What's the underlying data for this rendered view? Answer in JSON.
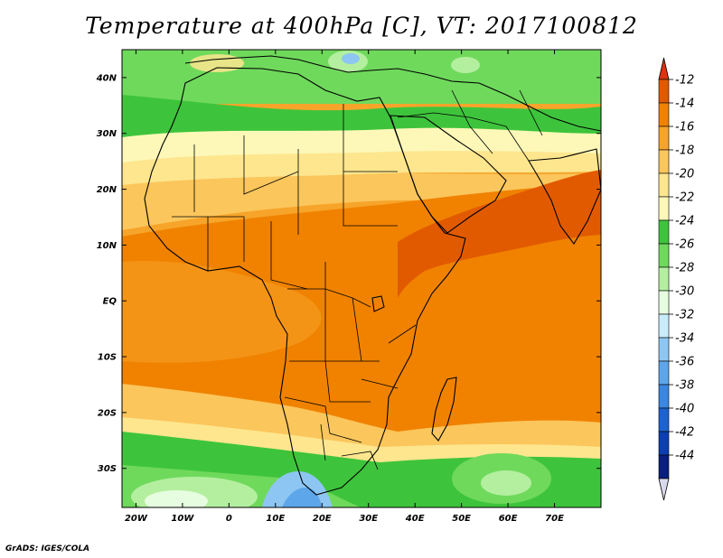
{
  "map": {
    "title": "Temperature at 400hPa [C], VT: 2017100812",
    "variable_unit": "C",
    "lon_range": [
      -23,
      80
    ],
    "lat_range": [
      -37,
      45
    ],
    "lat_ticks": [
      {
        "value": 40,
        "label": "40N"
      },
      {
        "value": 30,
        "label": "30N"
      },
      {
        "value": 20,
        "label": "20N"
      },
      {
        "value": 10,
        "label": "10N"
      },
      {
        "value": 0,
        "label": "EQ"
      },
      {
        "value": -10,
        "label": "10S"
      },
      {
        "value": -20,
        "label": "20S"
      },
      {
        "value": -30,
        "label": "30S"
      }
    ],
    "lon_ticks": [
      {
        "value": -20,
        "label": "20W"
      },
      {
        "value": -10,
        "label": "10W"
      },
      {
        "value": 0,
        "label": "0"
      },
      {
        "value": 10,
        "label": "10E"
      },
      {
        "value": 20,
        "label": "20E"
      },
      {
        "value": 30,
        "label": "30E"
      },
      {
        "value": 40,
        "label": "40E"
      },
      {
        "value": 50,
        "label": "50E"
      },
      {
        "value": 60,
        "label": "60E"
      },
      {
        "value": 70,
        "label": "70E"
      }
    ]
  },
  "colorbar": {
    "levels": [
      {
        "label": "-12",
        "color": "#e25a00"
      },
      {
        "label": "-14",
        "color": "#f08200"
      },
      {
        "label": "-16",
        "color": "#f7a42a"
      },
      {
        "label": "-18",
        "color": "#fbc65c"
      },
      {
        "label": "-20",
        "color": "#fde68e"
      },
      {
        "label": "-22",
        "color": "#fdf8b8"
      },
      {
        "label": "-24",
        "color": "#3ec43c"
      },
      {
        "label": "-26",
        "color": "#6fd95c"
      },
      {
        "label": "-28",
        "color": "#b4ef9f"
      },
      {
        "label": "-30",
        "color": "#e6fde0"
      },
      {
        "label": "-32",
        "color": "#c9ecfb"
      },
      {
        "label": "-34",
        "color": "#8dc6f2"
      },
      {
        "label": "-36",
        "color": "#5ea6ea"
      },
      {
        "label": "-38",
        "color": "#3a86e0"
      },
      {
        "label": "-40",
        "color": "#1c62d4"
      },
      {
        "label": "-42",
        "color": "#0c3fb2"
      },
      {
        "label": "-44",
        "color": "#091f7f"
      }
    ],
    "top_arrow_color": "#e03010",
    "bottom_arrow_color": "#d9d9ee"
  },
  "footer": {
    "credit": "GrADS: IGES/COLA"
  }
}
